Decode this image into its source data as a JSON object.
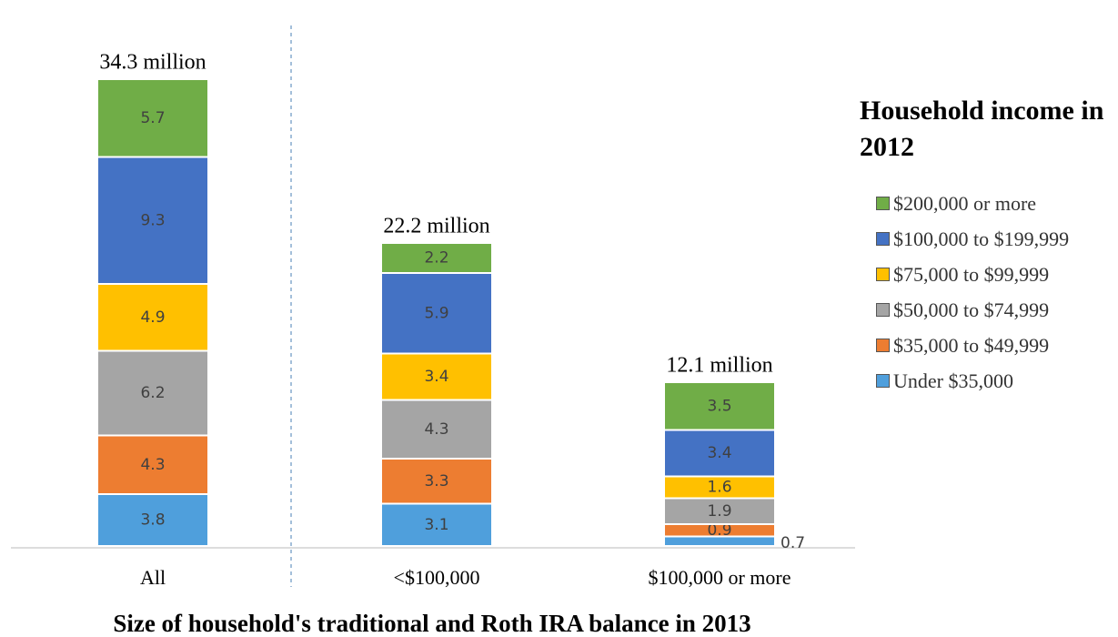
{
  "chart_data": {
    "type": "stacked_bar",
    "categories": [
      "All",
      "<$100,000",
      "$100,000 or more"
    ],
    "annotations": [
      "34.3 million",
      "22.2 million",
      "12.1 million"
    ],
    "x_label": "Size of household's traditional and Roth IRA balance in 2013",
    "legend_title": "Household income in 2012",
    "series": [
      {
        "name": "Under $35,000",
        "color": "#4f9fdc",
        "values": [
          3.8,
          3.1,
          0.7
        ]
      },
      {
        "name": "$35,000 to $49,999",
        "color": "#ed7d31",
        "values": [
          4.3,
          3.3,
          0.9
        ]
      },
      {
        "name": "$50,000 to $74,999",
        "color": "#a5a5a5",
        "values": [
          6.2,
          4.3,
          1.9
        ]
      },
      {
        "name": "$75,000 to $99,999",
        "color": "#ffc000",
        "values": [
          4.9,
          3.4,
          1.6
        ]
      },
      {
        "name": "$100,000 to $199,999",
        "color": "#4472c4",
        "values": [
          9.3,
          5.9,
          3.4
        ]
      },
      {
        "name": "$200,000 or more",
        "color": "#70ad47",
        "values": [
          5.7,
          2.2,
          3.5
        ]
      }
    ]
  }
}
